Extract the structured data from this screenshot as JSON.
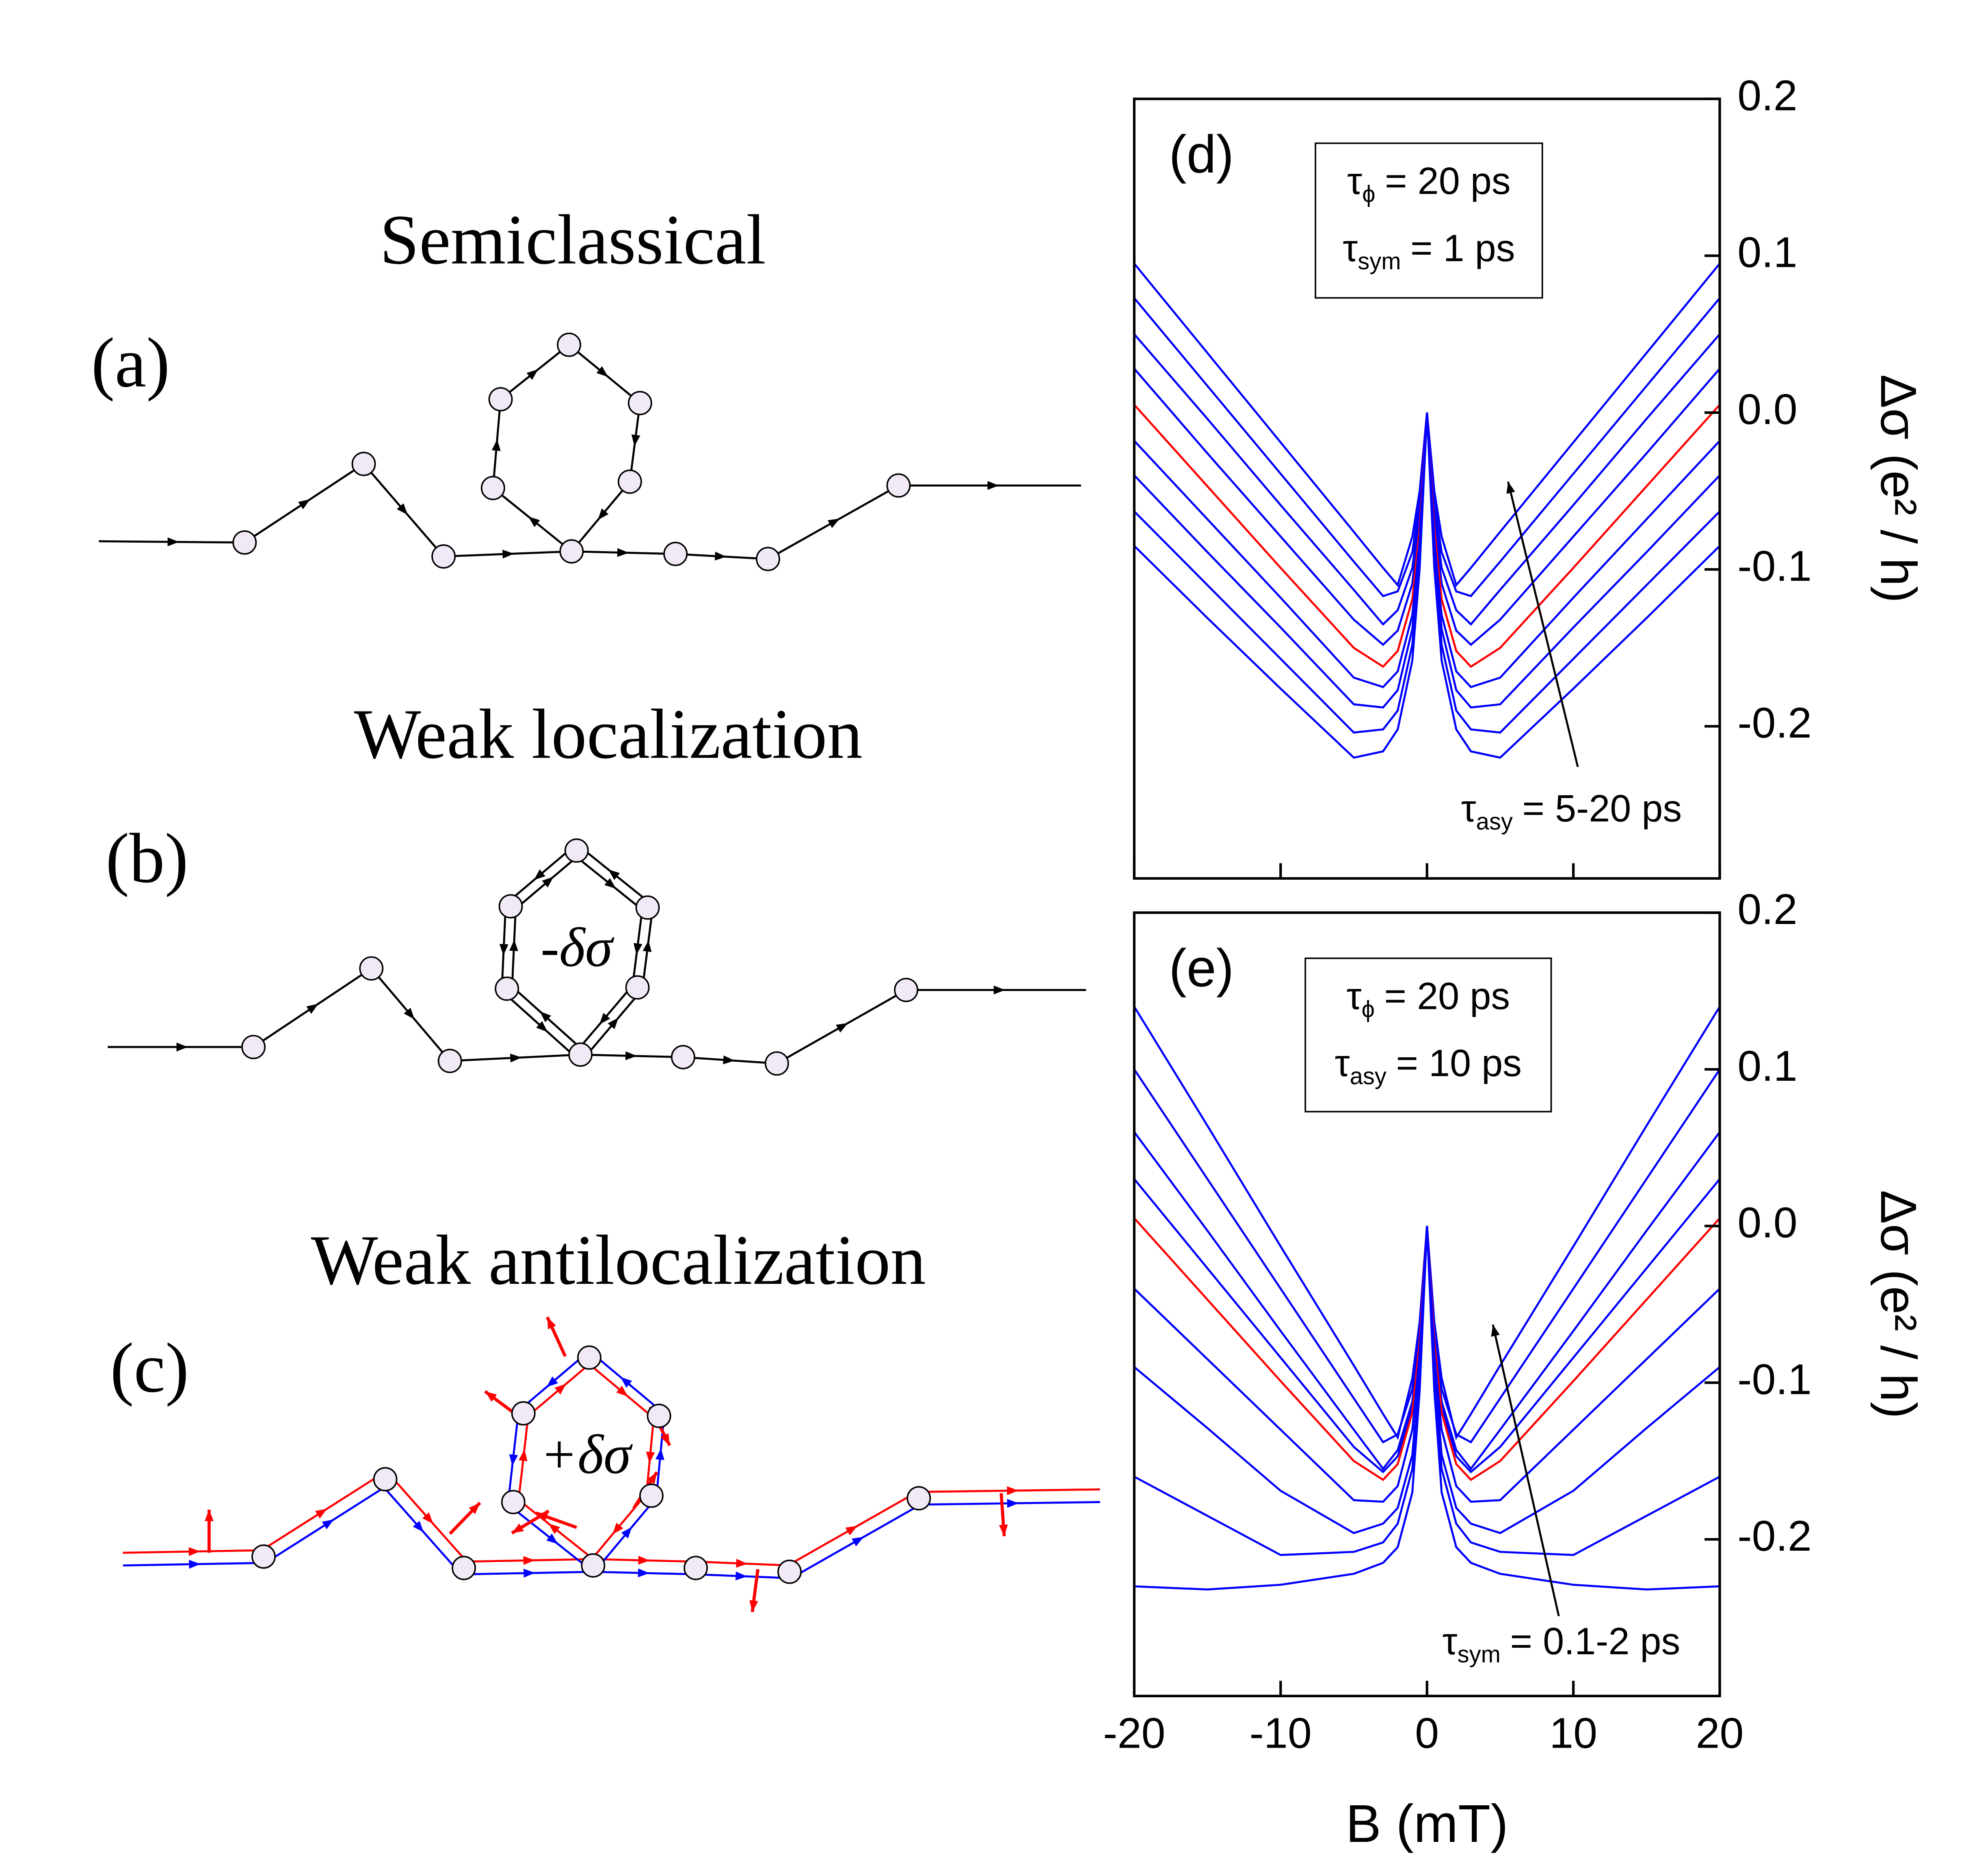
{
  "diagrams": {
    "panels": [
      {
        "label": "(a)",
        "title": "Semiclassical"
      },
      {
        "label": "(b)",
        "title": "Weak localization",
        "annotation": "-δσ"
      },
      {
        "label": "(c)",
        "title": "Weak antilocalization",
        "annotation": "+δσ"
      }
    ]
  },
  "chart_data": [
    {
      "type": "line",
      "panel_label": "(d)",
      "x": [
        -20,
        -15,
        -10,
        -5,
        -3,
        -2,
        -1,
        -0.5,
        0,
        0.5,
        1,
        2,
        3,
        5,
        10,
        15,
        20
      ],
      "xlim": [
        -20,
        20
      ],
      "xticks": [
        -20,
        -10,
        0,
        10,
        20
      ],
      "ylim": [
        -0.297,
        0.2
      ],
      "yticks": [
        0.2,
        0.1,
        {
          "value": 0,
          "label": "0.0"
        },
        -0.1,
        -0.2
      ],
      "ylabel": "Δσ (e² / h)",
      "params": [
        {
          "symbol": "τ",
          "subscript": "ϕ",
          "text": "= 20 ps"
        },
        {
          "symbol": "τ",
          "subscript": "sym",
          "text": "= 1 ps"
        }
      ],
      "arrow_label": {
        "symbol": "τ",
        "subscript": "asy",
        "text": "= 5-20 ps"
      },
      "series": [
        {
          "color": "#0000ff",
          "values": [
            0.095,
            0.038,
            -0.019,
            -0.076,
            -0.099,
            -0.11,
            -0.079,
            -0.05,
            0,
            -0.05,
            -0.079,
            -0.11,
            -0.099,
            -0.076,
            -0.019,
            0.038,
            0.095
          ]
        },
        {
          "color": "#0000ff",
          "values": [
            0.073,
            0.017,
            -0.039,
            -0.095,
            -0.117,
            -0.114,
            -0.089,
            -0.056,
            0,
            -0.056,
            -0.089,
            -0.114,
            -0.117,
            -0.095,
            -0.039,
            0.017,
            0.073
          ]
        },
        {
          "color": "#0000ff",
          "values": [
            0.05,
            -0.004,
            -0.059,
            -0.113,
            -0.135,
            -0.126,
            -0.099,
            -0.062,
            0,
            -0.062,
            -0.099,
            -0.126,
            -0.135,
            -0.113,
            -0.059,
            -0.004,
            0.05
          ]
        },
        {
          "color": "#0000ff",
          "values": [
            0.028,
            -0.026,
            -0.079,
            -0.132,
            -0.148,
            -0.139,
            -0.109,
            -0.068,
            0,
            -0.068,
            -0.109,
            -0.139,
            -0.148,
            -0.132,
            -0.079,
            -0.026,
            0.028
          ]
        },
        {
          "color": "#ff0000",
          "values": [
            0.005,
            -0.047,
            -0.099,
            -0.15,
            -0.162,
            -0.152,
            -0.119,
            -0.074,
            0,
            -0.074,
            -0.119,
            -0.152,
            -0.162,
            -0.15,
            -0.099,
            -0.047,
            0.005
          ]
        },
        {
          "color": "#0000ff",
          "values": [
            -0.018,
            -0.068,
            -0.118,
            -0.169,
            -0.175,
            -0.165,
            -0.129,
            -0.081,
            0,
            -0.081,
            -0.129,
            -0.165,
            -0.175,
            -0.169,
            -0.118,
            -0.068,
            -0.018
          ]
        },
        {
          "color": "#0000ff",
          "values": [
            -0.04,
            -0.089,
            -0.137,
            -0.186,
            -0.188,
            -0.177,
            -0.138,
            -0.086,
            0,
            -0.086,
            -0.138,
            -0.177,
            -0.188,
            -0.186,
            -0.137,
            -0.089,
            -0.04
          ]
        },
        {
          "color": "#0000ff",
          "values": [
            -0.063,
            -0.11,
            -0.157,
            -0.204,
            -0.202,
            -0.19,
            -0.148,
            -0.093,
            0,
            -0.093,
            -0.148,
            -0.19,
            -0.202,
            -0.204,
            -0.157,
            -0.11,
            -0.063
          ]
        },
        {
          "color": "#0000ff",
          "values": [
            -0.085,
            -0.131,
            -0.176,
            -0.22,
            -0.216,
            -0.202,
            -0.158,
            -0.099,
            0,
            -0.099,
            -0.158,
            -0.202,
            -0.216,
            -0.22,
            -0.176,
            -0.131,
            -0.085
          ]
        }
      ]
    },
    {
      "type": "line",
      "panel_label": "(e)",
      "x": [
        -20,
        -15,
        -10,
        -5,
        -3,
        -2,
        -1,
        -0.5,
        0,
        0.5,
        1,
        2,
        3,
        5,
        10,
        15,
        20
      ],
      "xlim": [
        -20,
        20
      ],
      "xticks": [
        -20,
        -10,
        0,
        10,
        20
      ],
      "xlabel": "B (mT)",
      "ylim": [
        -0.3,
        0.2
      ],
      "yticks": [
        0.2,
        0.1,
        {
          "value": 0,
          "label": "0.0"
        },
        -0.1,
        -0.2
      ],
      "ylabel": "Δσ (e² / h)",
      "params": [
        {
          "symbol": "τ",
          "subscript": "ϕ",
          "text": "= 20 ps"
        },
        {
          "symbol": "τ",
          "subscript": "asy",
          "text": "= 10 ps"
        }
      ],
      "arrow_label": {
        "symbol": "τ",
        "subscript": "sym",
        "text": "= 0.1-2 ps"
      },
      "series": [
        {
          "color": "#0000ff",
          "values": [
            0.14,
            0.064,
            -0.013,
            -0.089,
            -0.12,
            -0.135,
            -0.097,
            -0.061,
            0,
            -0.061,
            -0.097,
            -0.135,
            -0.12,
            -0.089,
            -0.013,
            0.064,
            0.14
          ]
        },
        {
          "color": "#0000ff",
          "values": [
            0.1,
            0.03,
            -0.04,
            -0.11,
            -0.138,
            -0.133,
            -0.104,
            -0.065,
            0,
            -0.065,
            -0.104,
            -0.133,
            -0.138,
            -0.11,
            -0.04,
            0.03,
            0.1
          ]
        },
        {
          "color": "#0000ff",
          "values": [
            0.06,
            -0.003,
            -0.067,
            -0.13,
            -0.155,
            -0.143,
            -0.112,
            -0.07,
            0,
            -0.07,
            -0.112,
            -0.143,
            -0.155,
            -0.13,
            -0.067,
            -0.003,
            0.06
          ]
        },
        {
          "color": "#0000ff",
          "values": [
            0.03,
            -0.027,
            -0.084,
            -0.141,
            -0.157,
            -0.147,
            -0.115,
            -0.072,
            0,
            -0.072,
            -0.115,
            -0.147,
            -0.157,
            -0.141,
            -0.084,
            -0.027,
            0.03
          ]
        },
        {
          "color": "#ff0000",
          "values": [
            0.005,
            -0.047,
            -0.099,
            -0.15,
            -0.162,
            -0.152,
            -0.119,
            -0.074,
            0,
            -0.074,
            -0.119,
            -0.152,
            -0.162,
            -0.15,
            -0.099,
            -0.047,
            0.005
          ]
        },
        {
          "color": "#0000ff",
          "values": [
            -0.04,
            -0.085,
            -0.13,
            -0.175,
            -0.176,
            -0.166,
            -0.13,
            -0.081,
            0,
            -0.081,
            -0.13,
            -0.166,
            -0.176,
            -0.175,
            -0.13,
            -0.085,
            -0.04
          ]
        },
        {
          "color": "#0000ff",
          "values": [
            -0.09,
            -0.129,
            -0.169,
            -0.196,
            -0.19,
            -0.18,
            -0.146,
            -0.09,
            0,
            -0.09,
            -0.146,
            -0.18,
            -0.19,
            -0.196,
            -0.169,
            -0.129,
            -0.09
          ]
        },
        {
          "color": "#0000ff",
          "values": [
            -0.16,
            -0.185,
            -0.21,
            -0.208,
            -0.202,
            -0.19,
            -0.155,
            -0.097,
            0,
            -0.097,
            -0.155,
            -0.19,
            -0.202,
            -0.208,
            -0.21,
            -0.185,
            -0.16
          ]
        },
        {
          "color": "#0000ff",
          "values": [
            -0.23,
            -0.232,
            -0.229,
            -0.222,
            -0.215,
            -0.205,
            -0.17,
            -0.105,
            0,
            -0.105,
            -0.17,
            -0.205,
            -0.215,
            -0.222,
            -0.229,
            -0.232,
            -0.23
          ]
        }
      ]
    }
  ]
}
